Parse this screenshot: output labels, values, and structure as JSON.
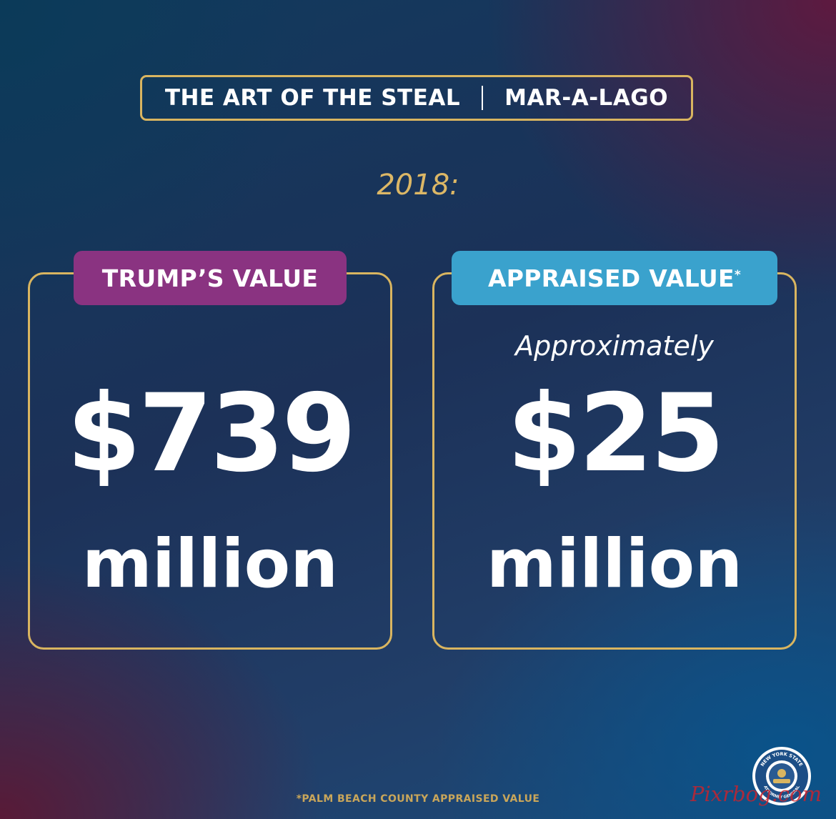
{
  "header": {
    "title_left": "THE ART OF THE STEAL",
    "title_right": "MAR-A-LAGO"
  },
  "year": "2018:",
  "cards": {
    "trump": {
      "tag": "TRUMP’S VALUE",
      "amount": "$739",
      "unit": "million",
      "tag_color": "#8a3381"
    },
    "appraised": {
      "tag": "APPRAISED VALUE",
      "tag_mark": "*",
      "qualifier": "Approximately",
      "amount": "$25",
      "unit": "million",
      "tag_color": "#3aa2cd"
    }
  },
  "footnote": "*PALM BEACH COUNTY APPRAISED VALUE",
  "seal": {
    "text_top": "NEW YORK STATE",
    "text_bottom": "ATTORNEY GENERAL",
    "icon": "ny-seal-icon"
  },
  "watermark": "Pixrbog.com",
  "colors": {
    "accent_gold": "#d9b560",
    "trump_tag": "#8a3381",
    "appraised_tag": "#3aa2cd"
  }
}
